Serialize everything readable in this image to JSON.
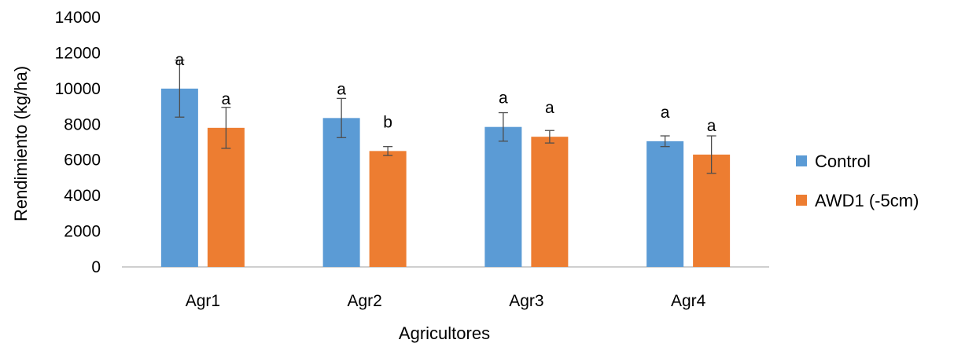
{
  "chart_data": {
    "type": "bar",
    "title": "",
    "xlabel": "Agricultores",
    "ylabel": "Rendimiento  (kg/ha)",
    "ylim": [
      0,
      14000
    ],
    "yticks": [
      0,
      2000,
      4000,
      6000,
      8000,
      10000,
      12000,
      14000
    ],
    "categories": [
      "Agr1",
      "Agr2",
      "Agr3",
      "Agr4"
    ],
    "grid": false,
    "legend_position": "right",
    "series": [
      {
        "name": "Control",
        "color": "#5B9BD5",
        "values": [
          10000,
          8350,
          7850,
          7050
        ],
        "errors": [
          1600,
          1100,
          800,
          300
        ],
        "labels": [
          "a",
          "a",
          "a",
          "a"
        ]
      },
      {
        "name": "AWD1 (-5cm)",
        "color": "#ED7D31",
        "values": [
          7800,
          6500,
          7300,
          6300
        ],
        "errors": [
          1150,
          250,
          350,
          1050
        ],
        "labels": [
          "a",
          "b",
          "a",
          "a"
        ]
      }
    ]
  }
}
